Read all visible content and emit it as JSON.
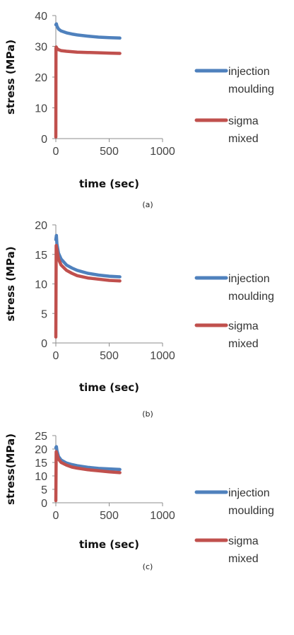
{
  "chart_data": [
    {
      "type": "line",
      "panel_label": "(a)",
      "xlabel": "time (sec)",
      "ylabel": "stress (MPa)",
      "xlim": [
        0,
        1000
      ],
      "ylim": [
        0,
        40
      ],
      "xticks": [
        0,
        500,
        1000
      ],
      "yticks": [
        0,
        10,
        20,
        30,
        40
      ],
      "legend_position": "right",
      "grid": false,
      "series": [
        {
          "name": "injection moulding",
          "color": "#4f81bd",
          "points": [
            [
              0,
              37.0
            ],
            [
              5,
              37.3
            ],
            [
              10,
              36.6
            ],
            [
              25,
              35.6
            ],
            [
              50,
              35.0
            ],
            [
              100,
              34.4
            ],
            [
              150,
              34.0
            ],
            [
              200,
              33.7
            ],
            [
              300,
              33.3
            ],
            [
              400,
              33.0
            ],
            [
              500,
              32.8
            ],
            [
              600,
              32.7
            ]
          ]
        },
        {
          "name": "sigma mixed",
          "color": "#c0504d",
          "points": [
            [
              0,
              0.5
            ],
            [
              1,
              29.5
            ],
            [
              3,
              29.8
            ],
            [
              10,
              29.3
            ],
            [
              25,
              28.9
            ],
            [
              50,
              28.6
            ],
            [
              100,
              28.4
            ],
            [
              200,
              28.1
            ],
            [
              300,
              28.0
            ],
            [
              400,
              27.9
            ],
            [
              500,
              27.8
            ],
            [
              600,
              27.7
            ]
          ]
        }
      ]
    },
    {
      "type": "line",
      "panel_label": "(b)",
      "xlabel": "time (sec)",
      "ylabel": "stress (MPa)",
      "xlim": [
        0,
        1000
      ],
      "ylim": [
        0,
        20
      ],
      "xticks": [
        0,
        500,
        1000
      ],
      "yticks": [
        0,
        5,
        10,
        15,
        20
      ],
      "legend_position": "right",
      "grid": false,
      "series": [
        {
          "name": "injection moulding",
          "color": "#4f81bd",
          "points": [
            [
              0,
              17.5
            ],
            [
              5,
              18.2
            ],
            [
              10,
              16.8
            ],
            [
              25,
              15.2
            ],
            [
              50,
              14.2
            ],
            [
              100,
              13.2
            ],
            [
              150,
              12.7
            ],
            [
              200,
              12.3
            ],
            [
              300,
              11.8
            ],
            [
              400,
              11.5
            ],
            [
              500,
              11.3
            ],
            [
              600,
              11.2
            ]
          ]
        },
        {
          "name": "sigma mixed",
          "color": "#c0504d",
          "points": [
            [
              0,
              1.0
            ],
            [
              3,
              16.5
            ],
            [
              8,
              16.0
            ],
            [
              25,
              14.2
            ],
            [
              50,
              13.2
            ],
            [
              100,
              12.3
            ],
            [
              150,
              11.8
            ],
            [
              200,
              11.4
            ],
            [
              300,
              11.0
            ],
            [
              400,
              10.8
            ],
            [
              500,
              10.6
            ],
            [
              600,
              10.5
            ]
          ]
        }
      ]
    },
    {
      "type": "line",
      "panel_label": "(c)",
      "xlabel": "time (sec)",
      "ylabel": "stress(MPa)",
      "xlim": [
        0,
        1000
      ],
      "ylim": [
        0,
        25
      ],
      "xticks": [
        0,
        500,
        1000
      ],
      "yticks": [
        0,
        5,
        10,
        15,
        20,
        25
      ],
      "legend_position": "right",
      "grid": false,
      "series": [
        {
          "name": "injection moulding",
          "color": "#4f81bd",
          "points": [
            [
              0,
              20.5
            ],
            [
              5,
              20.9
            ],
            [
              10,
              19.5
            ],
            [
              25,
              17.2
            ],
            [
              50,
              15.9
            ],
            [
              100,
              14.8
            ],
            [
              150,
              14.2
            ],
            [
              200,
              13.8
            ],
            [
              300,
              13.2
            ],
            [
              400,
              12.8
            ],
            [
              500,
              12.6
            ],
            [
              600,
              12.4
            ]
          ]
        },
        {
          "name": "sigma mixed",
          "color": "#c0504d",
          "points": [
            [
              0,
              0.8
            ],
            [
              3,
              19.0
            ],
            [
              8,
              18.3
            ],
            [
              25,
              16.2
            ],
            [
              50,
              15.0
            ],
            [
              100,
              14.0
            ],
            [
              150,
              13.3
            ],
            [
              200,
              12.9
            ],
            [
              300,
              12.3
            ],
            [
              400,
              11.9
            ],
            [
              500,
              11.5
            ],
            [
              600,
              11.2
            ]
          ]
        }
      ]
    }
  ]
}
